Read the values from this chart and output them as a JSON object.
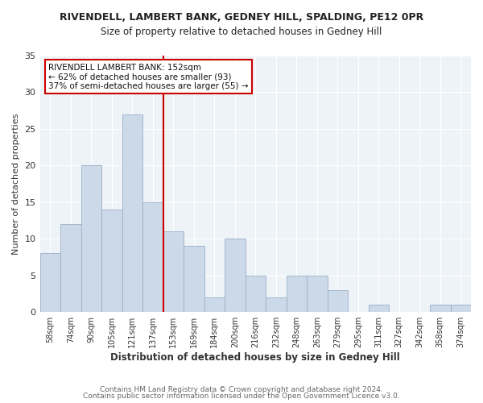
{
  "title": "RIVENDELL, LAMBERT BANK, GEDNEY HILL, SPALDING, PE12 0PR",
  "subtitle": "Size of property relative to detached houses in Gedney Hill",
  "xlabel": "Distribution of detached houses by size in Gedney Hill",
  "ylabel": "Number of detached properties",
  "footer_line1": "Contains HM Land Registry data © Crown copyright and database right 2024.",
  "footer_line2": "Contains public sector information licensed under the Open Government Licence v3.0.",
  "bar_labels": [
    "58sqm",
    "74sqm",
    "90sqm",
    "105sqm",
    "121sqm",
    "137sqm",
    "153sqm",
    "169sqm",
    "184sqm",
    "200sqm",
    "216sqm",
    "232sqm",
    "248sqm",
    "263sqm",
    "279sqm",
    "295sqm",
    "311sqm",
    "327sqm",
    "342sqm",
    "358sqm",
    "374sqm"
  ],
  "bar_values": [
    8,
    12,
    20,
    14,
    27,
    15,
    11,
    9,
    2,
    10,
    5,
    2,
    5,
    5,
    3,
    0,
    1,
    0,
    0,
    1,
    1
  ],
  "bar_color": "#ccd9e8",
  "bar_edge_color": "#9ab0c8",
  "reference_line_color": "#cc0000",
  "annotation_line1": "RIVENDELL LAMBERT BANK: 152sqm",
  "annotation_line2": "← 62% of detached houses are smaller (93)",
  "annotation_line3": "37% of semi-detached houses are larger (55) →",
  "ylim": [
    0,
    35
  ],
  "yticks": [
    0,
    5,
    10,
    15,
    20,
    25,
    30,
    35
  ],
  "plot_bg_color": "#eef3f8",
  "fig_bg_color": "#ffffff",
  "grid_color": "#ffffff",
  "title_fontsize": 9,
  "subtitle_fontsize": 8.5
}
